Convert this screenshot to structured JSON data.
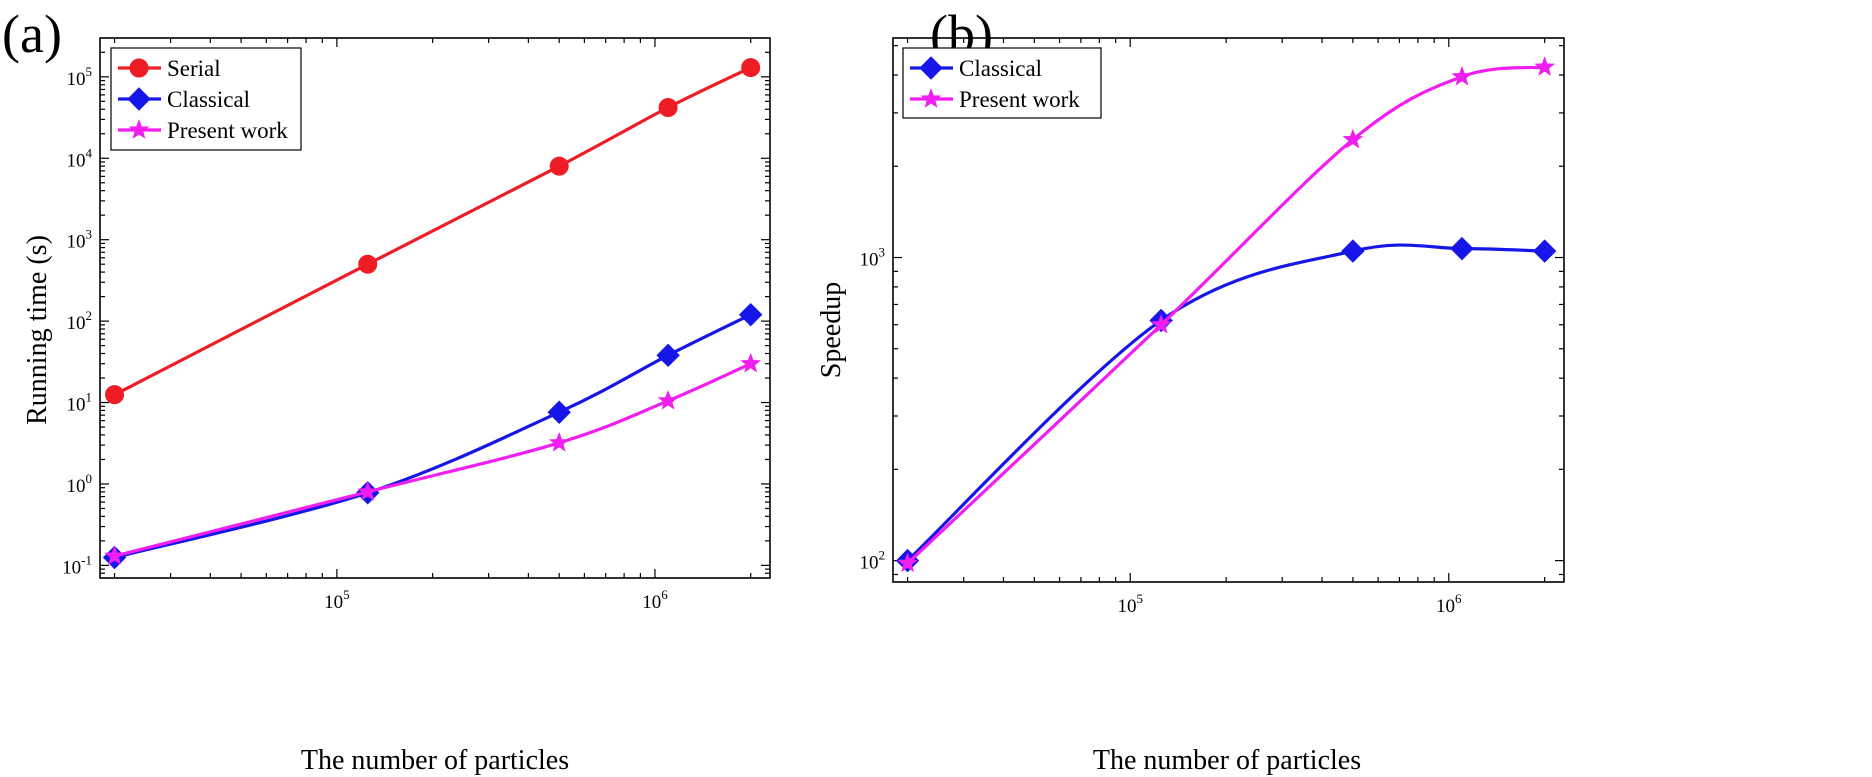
{
  "chart_data": [
    {
      "panel": "(a)",
      "type": "line",
      "xlabel": "The number of particles",
      "ylabel": "Running time (s)",
      "xscale": "log",
      "yscale": "log",
      "xlim": [
        18000,
        2300000
      ],
      "ylim": [
        0.07,
        300000
      ],
      "xticks": [
        {
          "value": 100000,
          "base": "10",
          "exp": "5"
        },
        {
          "value": 1000000,
          "base": "10",
          "exp": "6"
        }
      ],
      "yticks": [
        {
          "value": 0.1,
          "base": "10",
          "exp": "-1"
        },
        {
          "value": 1,
          "base": "10",
          "exp": "0"
        },
        {
          "value": 10,
          "base": "10",
          "exp": "1"
        },
        {
          "value": 100,
          "base": "10",
          "exp": "2"
        },
        {
          "value": 1000,
          "base": "10",
          "exp": "3"
        },
        {
          "value": 10000,
          "base": "10",
          "exp": "4"
        },
        {
          "value": 100000,
          "base": "10",
          "exp": "5"
        }
      ],
      "grid": false,
      "legend_position": "top-left",
      "series": [
        {
          "name": "Serial",
          "color": "#ee1c24",
          "marker": "circle",
          "x": [
            20000,
            125000,
            500000,
            1100000,
            2000000
          ],
          "y": [
            12.5,
            500,
            8000,
            42000,
            130000
          ]
        },
        {
          "name": "Classical",
          "color": "#1616e8",
          "marker": "diamond",
          "x": [
            20000,
            125000,
            500000,
            1100000,
            2000000
          ],
          "y": [
            0.125,
            0.78,
            7.6,
            38,
            120
          ]
        },
        {
          "name": "Present work",
          "color": "#f01ef0",
          "marker": "star",
          "x": [
            20000,
            125000,
            500000,
            1100000,
            2000000
          ],
          "y": [
            0.13,
            0.8,
            3.2,
            10.5,
            30
          ]
        }
      ]
    },
    {
      "panel": "(b)",
      "type": "line",
      "xlabel": "The number of particles",
      "ylabel": "Speedup",
      "xscale": "log",
      "yscale": "log",
      "xlim": [
        18000,
        2300000
      ],
      "ylim": [
        85,
        5300
      ],
      "xticks": [
        {
          "value": 100000,
          "base": "10",
          "exp": "5"
        },
        {
          "value": 1000000,
          "base": "10",
          "exp": "6"
        }
      ],
      "yticks": [
        {
          "value": 100,
          "base": "10",
          "exp": "2"
        },
        {
          "value": 1000,
          "base": "10",
          "exp": "3"
        }
      ],
      "grid": false,
      "legend_position": "top-left",
      "series": [
        {
          "name": "Classical",
          "color": "#1616e8",
          "marker": "diamond",
          "x": [
            20000,
            125000,
            500000,
            1100000,
            2000000
          ],
          "y": [
            100,
            620,
            1050,
            1070,
            1050
          ]
        },
        {
          "name": "Present work",
          "color": "#f01ef0",
          "marker": "star",
          "x": [
            20000,
            125000,
            500000,
            1100000,
            2000000
          ],
          "y": [
            98,
            600,
            2450,
            3950,
            4250
          ]
        }
      ]
    }
  ]
}
